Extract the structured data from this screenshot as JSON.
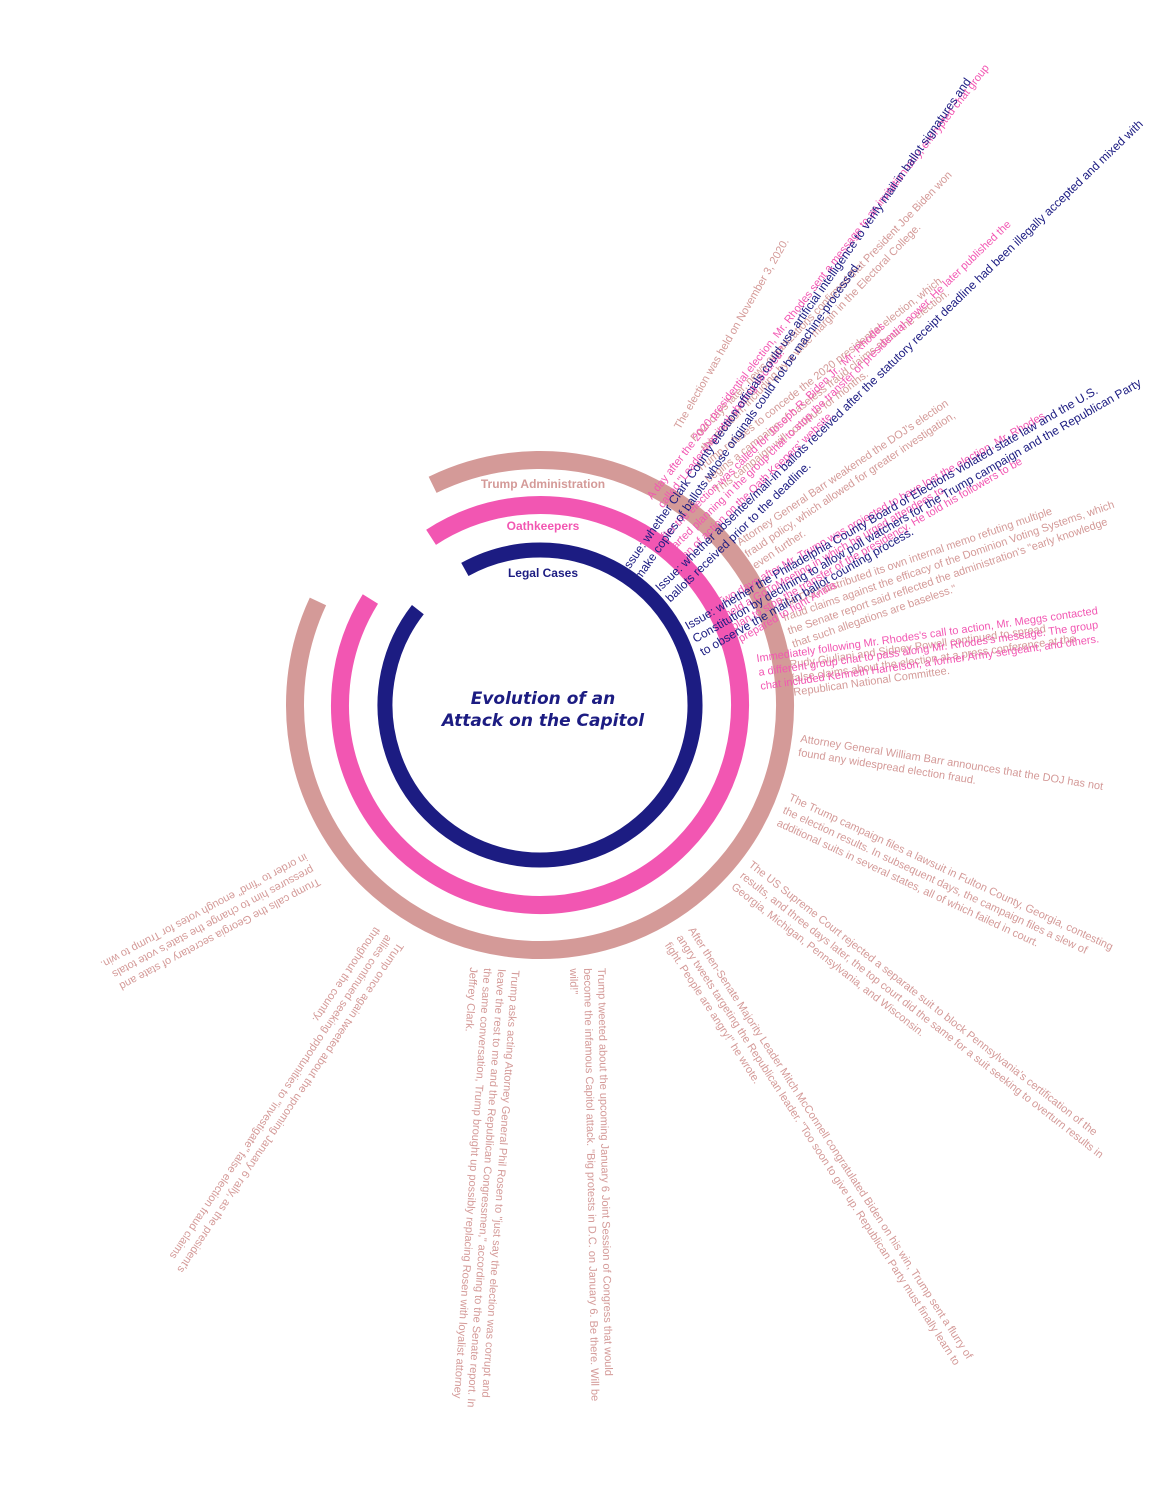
{
  "title": {
    "line1": "Evolution of an",
    "line2": "Attack on the Capitol"
  },
  "colors": {
    "trump_administration": "#d49a98",
    "oathkeepers": "#f256b2",
    "legal_cases": "#1c1c82",
    "title": "#1c1c82"
  },
  "rings": [
    {
      "key": "trump_administration",
      "label": "Trump Administration"
    },
    {
      "key": "oathkeepers",
      "label": "Oathkeepers"
    },
    {
      "key": "legal_cases",
      "label": "Legal Cases"
    }
  ],
  "annotations": [
    {
      "category": "trump_administration",
      "lines": [
        "The election was held on November 3, 2020."
      ]
    },
    {
      "category": "trump_administration",
      "lines": [
        "Four days later, news organizations confirmed that President Joe Biden won",
        "the election, including by a wide margin in the Electoral College."
      ]
    },
    {
      "category": "trump_administration",
      "lines": [
        "Trump refuses to concede the 2020 presidential election, which",
        "begins a campaign of baseless fraud claims about the election.",
        "This campaign will continue for months."
      ]
    },
    {
      "category": "trump_administration",
      "lines": [
        "Attorney General Barr weakened the DOJ's election",
        "fraud policy, which allowed for greater investigation,",
        "even further."
      ]
    },
    {
      "category": "trump_administration",
      "lines": [
        "The DOJ distributed its own internal memo refuting multiple",
        "fraud claims against the efficacy of the Dominion Voting Systems, which",
        "the Senate report said reflected the administration's \"early knowledge",
        "that such allegations are baseless.\""
      ]
    },
    {
      "category": "trump_administration",
      "lines": [
        "Rudy Giuliani and Sidney Powell continued to spread",
        "false claims about the election at a press conference at the",
        "Republican National Committee."
      ]
    },
    {
      "category": "trump_administration",
      "lines": [
        "Attorney General William Barr announces that the DOJ has not",
        "found any widespread election fraud."
      ]
    },
    {
      "category": "trump_administration",
      "lines": [
        "The Trump campaign files a lawsuit in Fulton County, Georgia, contesting",
        "the election results. In subsequent days, the campaign files a slew of",
        "additional suits in several states, all of which failed in court."
      ]
    },
    {
      "category": "trump_administration",
      "lines": [
        "The US Supreme Court rejected a separate suit to block Pennsylvania's certification of the",
        "results, and three days later, the top court did the same for a suit seeking to overturn results in",
        "Georgia, Michigan, Pennsylvania, and Wisconsin."
      ]
    },
    {
      "category": "trump_administration",
      "lines": [
        "After then-Senate Majority Leader Mitch McConnell congratulated Biden on his win, Trump sent a flurry of",
        "angry tweets targeting the Republican leader. \"Too soon to give up. Republican Party must finally learn to",
        "fight. People are angry!\" he wrote."
      ]
    },
    {
      "category": "trump_administration",
      "lines": [
        "Trump tweeted about the upcoming January 6 Joint Session of Congress that would",
        "become the infamous Capitol attack. \"Big protests in D.C. on January 6. Be there. Will be",
        "wild!\""
      ]
    },
    {
      "category": "trump_administration",
      "lines": [
        "Trump asks acting Attorney General Phil Rosen to \"just say the election was corrupt and",
        "leave the rest to me and the Republican Congressmen,\" according to the Senate report. In",
        "the same conversation, Trump brought up possibly replacing Rosen with loyalist attorney",
        "Jeffrey Clark."
      ]
    },
    {
      "category": "trump_administration",
      "lines": [
        "Trump once again tweeted about the upcoming January 6 rally, as the president's",
        "allies continued seeking opportunities to \"investigate\" false election fraud claims",
        "throughout the country."
      ]
    },
    {
      "category": "trump_administration",
      "lines": [
        "Trump calls the Georgia secretary of state and",
        "pressures him to change the state's vote totals",
        "in order to \"find\" enough votes for Trump to win."
      ]
    },
    {
      "category": "oathkeepers",
      "lines": [
        "A day after the 2020 presidential election, Mr. Rhodes sent a message to an invitation-only, encrypted chat group",
        "called \"Leadership intel sharing secured.\""
      ]
    },
    {
      "category": "oathkeepers",
      "lines": [
        "After the election was called for Joseph R. Biden Jr., Mr. Rhodes",
        "started planning in the group chat to stop the transfer of presidential power. He later published the",
        "plan of action on the Oath Keepers' website."
      ]
    },
    {
      "category": "oathkeepers",
      "lines": [
        "Two days after Mr. Trump was projected to have lost the election, Mr. Rhodes",
        "held a GoToMeeting in which he urged attendees to",
        "plan to stop the transfer of the presidency. He told his followers to be",
        "prepared to fight Antifa."
      ]
    },
    {
      "category": "oathkeepers",
      "lines": [
        "Immediately following Mr. Rhodes's call to action, Mr. Meggs contacted",
        "a different group chat to pass along Mr. Rhodes's message. The group",
        "chat included Kenneth Harrelson, a former Army sergeant, and others."
      ]
    },
    {
      "category": "legal_cases",
      "lines": [
        "Issue: whether Clark County election officials could use artificial intelligence to verify mail-in ballot signatures and",
        "make copies of ballots whose originals could not be machine-processed."
      ]
    },
    {
      "category": "legal_cases",
      "lines": [
        "Issue: whether absentee/mail-in ballots received after the statutory receipt deadline had been illegally accepted and mixed with",
        "ballots received prior to the deadline."
      ]
    },
    {
      "category": "legal_cases",
      "lines": [
        "Issue: whether the Philadelphia County Board of Elections violated state law and the U.S.",
        "Constitution by declining to allow poll watchers for the Trump campaign and the Republican Party",
        "to observe the mail-in ballot counting process."
      ]
    }
  ]
}
